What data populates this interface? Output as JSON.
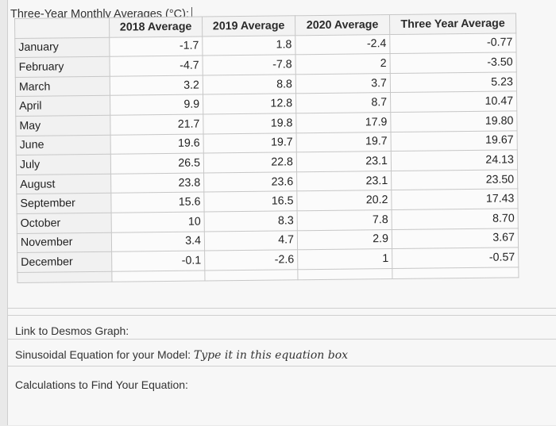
{
  "title": "Three-Year Monthly Averages (°C):",
  "headers": [
    "",
    "2018 Average",
    "2019 Average",
    "2020 Average",
    "Three Year Average"
  ],
  "rows": [
    {
      "month": "January",
      "y2018": "-1.7",
      "y2019": "1.8",
      "y2020": "-2.4",
      "avg": "-0.77"
    },
    {
      "month": "February",
      "y2018": "-4.7",
      "y2019": "-7.8",
      "y2020": "2",
      "avg": "-3.50"
    },
    {
      "month": "March",
      "y2018": "3.2",
      "y2019": "8.8",
      "y2020": "3.7",
      "avg": "5.23"
    },
    {
      "month": "April",
      "y2018": "9.9",
      "y2019": "12.8",
      "y2020": "8.7",
      "avg": "10.47"
    },
    {
      "month": "May",
      "y2018": "21.7",
      "y2019": "19.8",
      "y2020": "17.9",
      "avg": "19.80"
    },
    {
      "month": "June",
      "y2018": "19.6",
      "y2019": "19.7",
      "y2020": "19.7",
      "avg": "19.67"
    },
    {
      "month": "July",
      "y2018": "26.5",
      "y2019": "22.8",
      "y2020": "23.1",
      "avg": "24.13"
    },
    {
      "month": "August",
      "y2018": "23.8",
      "y2019": "23.6",
      "y2020": "23.1",
      "avg": "23.50"
    },
    {
      "month": "September",
      "y2018": "15.6",
      "y2019": "16.5",
      "y2020": "20.2",
      "avg": "17.43"
    },
    {
      "month": "October",
      "y2018": "10",
      "y2019": "8.3",
      "y2020": "7.8",
      "avg": "8.70"
    },
    {
      "month": "November",
      "y2018": "3.4",
      "y2019": "4.7",
      "y2020": "2.9",
      "avg": "3.67"
    },
    {
      "month": "December",
      "y2018": "-0.1",
      "y2019": "-2.6",
      "y2020": "1",
      "avg": "-0.57"
    }
  ],
  "desmos_label": "Link to Desmos Graph:",
  "equation_label": "Sinusoidal Equation for your Model:",
  "equation_placeholder": "Type it in this equation box",
  "calculations_label": "Calculations to Find Your Equation:"
}
